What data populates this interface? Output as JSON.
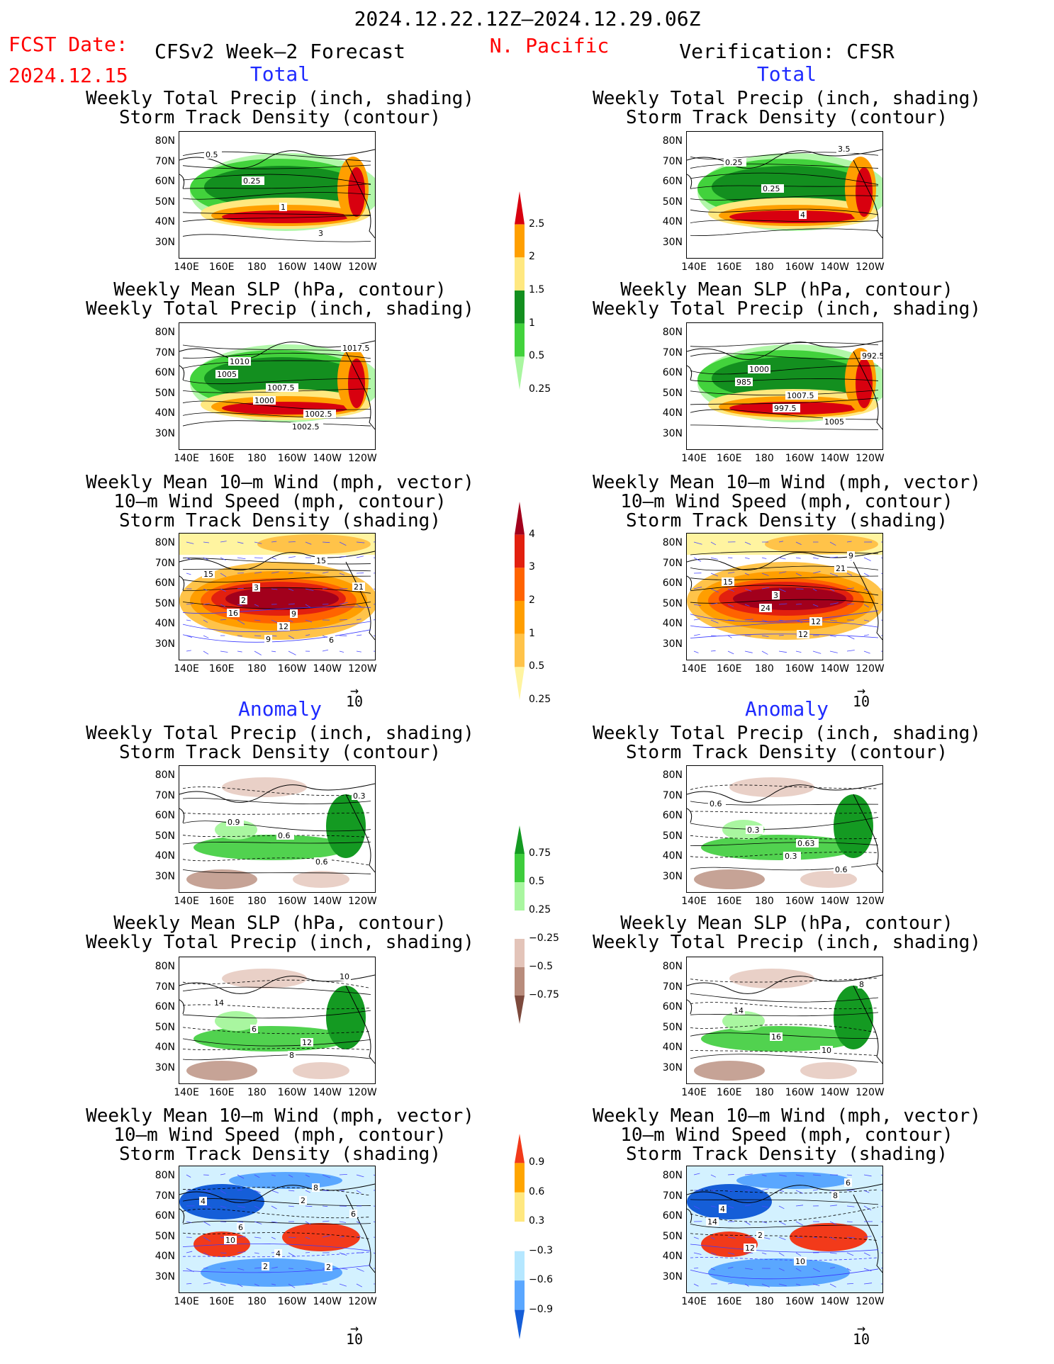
{
  "header": {
    "period": "2024.12.22.12Z–2024.12.29.06Z",
    "fcst_label": "FCST Date:",
    "fcst_date": "2024.12.15",
    "model": "CFSv2 Week–2 Forecast",
    "region": "N. Pacific",
    "verification": "Verification: CFSR"
  },
  "sections": {
    "total": "Total",
    "anomaly": "Anomaly"
  },
  "panel_titles": {
    "precip_track": [
      "Weekly Total Precip (inch, shading)",
      "Storm Track Density (contour)"
    ],
    "slp_precip": [
      "Weekly Mean SLP (hPa, contour)",
      "Weekly Total Precip (inch, shading)"
    ],
    "wind_track": [
      "Weekly Mean 10–m Wind (mph, vector)",
      "10–m Wind Speed (mph, contour)",
      "Storm Track Density (shading)"
    ]
  },
  "axes": {
    "lat": [
      "80N",
      "70N",
      "60N",
      "50N",
      "40N",
      "30N"
    ],
    "lon": [
      "140E",
      "160E",
      "180",
      "160W",
      "140W",
      "120W"
    ]
  },
  "vector_ref": "10",
  "colorbars": {
    "precip_total": {
      "labels": [
        "2.5",
        "2",
        "1.5",
        "1",
        "0.5",
        "0.25"
      ],
      "colors": [
        "#d8000f",
        "#ff9f00",
        "#ffe880",
        "#138f1f",
        "#42d23c",
        "#a9f6a0"
      ]
    },
    "track_total": {
      "labels": [
        "4",
        "3",
        "2",
        "1",
        "0.5",
        "0.25"
      ],
      "colors": [
        "#a2001c",
        "#e2200f",
        "#ff6300",
        "#ff9e00",
        "#ffc349",
        "#fff4a0"
      ]
    },
    "precip_anom": {
      "labels": [
        "0.75",
        "0.5",
        "0.25",
        "−0.25",
        "−0.5",
        "−0.75"
      ],
      "colors": [
        "#149a22",
        "#3ecd3c",
        "#a9f6a0",
        "#ffffff",
        "#e3c4b9",
        "#b88c7c",
        "#7d4a3d"
      ]
    },
    "track_anom": {
      "labels": [
        "0.9",
        "0.6",
        "0.3",
        "−0.3",
        "−0.6",
        "−0.9"
      ],
      "colors": [
        "#f23a1a",
        "#ffa500",
        "#ffe880",
        "#ffffff",
        "#b5e7ff",
        "#5aa7ff",
        "#155ed8"
      ]
    }
  },
  "contour_labels": {
    "f1": [
      "0.5",
      "0.25",
      "1",
      "3"
    ],
    "v1": [
      "0.25",
      "0.25",
      "4",
      "3.5"
    ],
    "f2": [
      "1010",
      "1007.5",
      "1002.5",
      "1017.5",
      "1005",
      "1000",
      "1002.5"
    ],
    "v2": [
      "1000",
      "1007.5",
      "1005",
      "992.5",
      "985",
      "997.5"
    ],
    "f3": [
      "3",
      "9",
      "6",
      "15",
      "2",
      "12",
      "15",
      "21",
      "16",
      "9"
    ],
    "v3": [
      "3",
      "12",
      "9",
      "15",
      "24",
      "12",
      "21"
    ],
    "f4": [
      "0.6",
      "0.6",
      "0.3",
      "0.9"
    ],
    "v4": [
      "0.63",
      "0.6",
      "0.6",
      "0.3",
      "0.3"
    ],
    "f5": [
      "12",
      "10",
      "14",
      "6",
      "8"
    ],
    "v5": [
      "10",
      "8",
      "14",
      "16"
    ],
    "f6": [
      "2",
      "4",
      "6",
      "4",
      "8",
      "6",
      "10",
      "2",
      "2"
    ],
    "v6": [
      "6",
      "4",
      "2",
      "10",
      "8",
      "14",
      "12"
    ]
  }
}
